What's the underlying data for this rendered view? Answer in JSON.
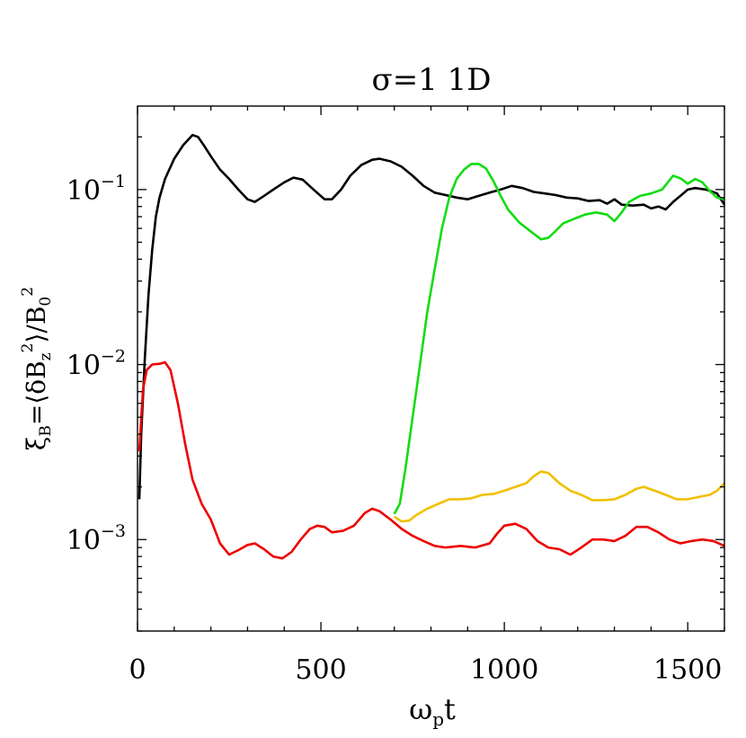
{
  "chart_data": {
    "type": "line",
    "title": "σ=1  1D",
    "xlabel": {
      "base": "ω",
      "sub": "p",
      "tail": "t"
    },
    "ylabel": "ξ_B=⟨δB_z^2⟩/B_0^2",
    "xlim": [
      0,
      1600
    ],
    "ylim": [
      0.0003,
      0.3
    ],
    "yscale": "log",
    "x_ticks": [
      {
        "value": 0,
        "label": "0"
      },
      {
        "value": 500,
        "label": "500"
      },
      {
        "value": 1000,
        "label": "1000"
      },
      {
        "value": 1500,
        "label": "1500"
      }
    ],
    "y_ticks": [
      {
        "value": 0.1,
        "base": "10",
        "exp": "−1"
      },
      {
        "value": 0.01,
        "base": "10",
        "exp": "−2"
      },
      {
        "value": 0.001,
        "base": "10",
        "exp": "−3"
      }
    ],
    "series": [
      {
        "color": "#000000",
        "points": [
          [
            5,
            0.0017
          ],
          [
            10,
            0.004
          ],
          [
            20,
            0.011
          ],
          [
            30,
            0.025
          ],
          [
            40,
            0.045
          ],
          [
            50,
            0.07
          ],
          [
            60,
            0.09
          ],
          [
            75,
            0.115
          ],
          [
            100,
            0.15
          ],
          [
            125,
            0.18
          ],
          [
            150,
            0.205
          ],
          [
            165,
            0.2
          ],
          [
            180,
            0.18
          ],
          [
            200,
            0.155
          ],
          [
            225,
            0.13
          ],
          [
            250,
            0.115
          ],
          [
            275,
            0.1
          ],
          [
            300,
            0.088
          ],
          [
            320,
            0.085
          ],
          [
            345,
            0.092
          ],
          [
            370,
            0.1
          ],
          [
            400,
            0.11
          ],
          [
            425,
            0.117
          ],
          [
            450,
            0.114
          ],
          [
            480,
            0.1
          ],
          [
            510,
            0.088
          ],
          [
            530,
            0.088
          ],
          [
            555,
            0.1
          ],
          [
            580,
            0.12
          ],
          [
            610,
            0.138
          ],
          [
            640,
            0.148
          ],
          [
            660,
            0.15
          ],
          [
            690,
            0.145
          ],
          [
            720,
            0.135
          ],
          [
            750,
            0.12
          ],
          [
            780,
            0.105
          ],
          [
            810,
            0.096
          ],
          [
            840,
            0.093
          ],
          [
            870,
            0.09
          ],
          [
            900,
            0.088
          ],
          [
            930,
            0.092
          ],
          [
            960,
            0.096
          ],
          [
            990,
            0.1
          ],
          [
            1020,
            0.105
          ],
          [
            1050,
            0.102
          ],
          [
            1080,
            0.097
          ],
          [
            1110,
            0.095
          ],
          [
            1140,
            0.093
          ],
          [
            1170,
            0.09
          ],
          [
            1200,
            0.089
          ],
          [
            1230,
            0.086
          ],
          [
            1260,
            0.087
          ],
          [
            1280,
            0.083
          ],
          [
            1300,
            0.088
          ],
          [
            1320,
            0.082
          ],
          [
            1350,
            0.081
          ],
          [
            1380,
            0.082
          ],
          [
            1400,
            0.078
          ],
          [
            1420,
            0.08
          ],
          [
            1440,
            0.077
          ],
          [
            1460,
            0.085
          ],
          [
            1480,
            0.092
          ],
          [
            1500,
            0.1
          ],
          [
            1520,
            0.102
          ],
          [
            1550,
            0.1
          ],
          [
            1580,
            0.095
          ],
          [
            1600,
            0.082
          ]
        ]
      },
      {
        "color": "#ee0000",
        "points": [
          [
            5,
            0.0032
          ],
          [
            15,
            0.0072
          ],
          [
            25,
            0.0093
          ],
          [
            40,
            0.01
          ],
          [
            60,
            0.0101
          ],
          [
            75,
            0.0103
          ],
          [
            90,
            0.0093
          ],
          [
            110,
            0.006
          ],
          [
            130,
            0.0035
          ],
          [
            150,
            0.0022
          ],
          [
            175,
            0.0016
          ],
          [
            200,
            0.0013
          ],
          [
            225,
            0.00095
          ],
          [
            250,
            0.00082
          ],
          [
            275,
            0.00087
          ],
          [
            300,
            0.00093
          ],
          [
            320,
            0.00095
          ],
          [
            345,
            0.00088
          ],
          [
            370,
            0.0008
          ],
          [
            395,
            0.00078
          ],
          [
            420,
            0.00085
          ],
          [
            445,
            0.001
          ],
          [
            470,
            0.00115
          ],
          [
            490,
            0.0012
          ],
          [
            510,
            0.00118
          ],
          [
            530,
            0.0011
          ],
          [
            560,
            0.00112
          ],
          [
            590,
            0.0012
          ],
          [
            620,
            0.00142
          ],
          [
            640,
            0.0015
          ],
          [
            660,
            0.00145
          ],
          [
            690,
            0.0013
          ],
          [
            720,
            0.00115
          ],
          [
            750,
            0.00105
          ],
          [
            780,
            0.00098
          ],
          [
            810,
            0.00092
          ],
          [
            840,
            0.0009
          ],
          [
            880,
            0.00092
          ],
          [
            920,
            0.0009
          ],
          [
            960,
            0.00095
          ],
          [
            980,
            0.00108
          ],
          [
            1000,
            0.0012
          ],
          [
            1030,
            0.00123
          ],
          [
            1060,
            0.00115
          ],
          [
            1090,
            0.00098
          ],
          [
            1120,
            0.0009
          ],
          [
            1150,
            0.00088
          ],
          [
            1180,
            0.00082
          ],
          [
            1210,
            0.0009
          ],
          [
            1240,
            0.001
          ],
          [
            1270,
            0.001
          ],
          [
            1300,
            0.00098
          ],
          [
            1330,
            0.00105
          ],
          [
            1360,
            0.00118
          ],
          [
            1390,
            0.00118
          ],
          [
            1420,
            0.0011
          ],
          [
            1450,
            0.001
          ],
          [
            1480,
            0.00095
          ],
          [
            1510,
            0.00098
          ],
          [
            1540,
            0.001
          ],
          [
            1570,
            0.00098
          ],
          [
            1600,
            0.00092
          ]
        ]
      },
      {
        "color": "#11dd11",
        "points": [
          [
            700,
            0.0014
          ],
          [
            715,
            0.0016
          ],
          [
            730,
            0.0025
          ],
          [
            750,
            0.005
          ],
          [
            770,
            0.01
          ],
          [
            790,
            0.02
          ],
          [
            810,
            0.035
          ],
          [
            830,
            0.06
          ],
          [
            850,
            0.09
          ],
          [
            870,
            0.115
          ],
          [
            890,
            0.13
          ],
          [
            910,
            0.14
          ],
          [
            930,
            0.14
          ],
          [
            950,
            0.132
          ],
          [
            970,
            0.112
          ],
          [
            990,
            0.092
          ],
          [
            1010,
            0.077
          ],
          [
            1040,
            0.065
          ],
          [
            1070,
            0.058
          ],
          [
            1100,
            0.052
          ],
          [
            1120,
            0.053
          ],
          [
            1140,
            0.058
          ],
          [
            1160,
            0.064
          ],
          [
            1190,
            0.068
          ],
          [
            1220,
            0.072
          ],
          [
            1250,
            0.074
          ],
          [
            1280,
            0.072
          ],
          [
            1300,
            0.066
          ],
          [
            1320,
            0.074
          ],
          [
            1340,
            0.085
          ],
          [
            1370,
            0.092
          ],
          [
            1400,
            0.095
          ],
          [
            1430,
            0.1
          ],
          [
            1460,
            0.12
          ],
          [
            1480,
            0.116
          ],
          [
            1500,
            0.108
          ],
          [
            1520,
            0.115
          ],
          [
            1540,
            0.11
          ],
          [
            1560,
            0.098
          ],
          [
            1580,
            0.09
          ],
          [
            1600,
            0.088
          ]
        ]
      },
      {
        "color": "#f0c000",
        "points": [
          [
            700,
            0.00135
          ],
          [
            720,
            0.00127
          ],
          [
            740,
            0.00128
          ],
          [
            760,
            0.00138
          ],
          [
            790,
            0.0015
          ],
          [
            820,
            0.0016
          ],
          [
            850,
            0.0017
          ],
          [
            880,
            0.0017
          ],
          [
            910,
            0.00172
          ],
          [
            940,
            0.0018
          ],
          [
            970,
            0.00182
          ],
          [
            1000,
            0.0019
          ],
          [
            1030,
            0.002
          ],
          [
            1060,
            0.0021
          ],
          [
            1080,
            0.0023
          ],
          [
            1100,
            0.00245
          ],
          [
            1120,
            0.0024
          ],
          [
            1150,
            0.0021
          ],
          [
            1180,
            0.0019
          ],
          [
            1210,
            0.0018
          ],
          [
            1240,
            0.00168
          ],
          [
            1270,
            0.00168
          ],
          [
            1300,
            0.0017
          ],
          [
            1330,
            0.0018
          ],
          [
            1360,
            0.00195
          ],
          [
            1380,
            0.002
          ],
          [
            1410,
            0.0019
          ],
          [
            1440,
            0.0018
          ],
          [
            1470,
            0.0017
          ],
          [
            1500,
            0.0017
          ],
          [
            1530,
            0.00175
          ],
          [
            1560,
            0.0018
          ],
          [
            1580,
            0.0019
          ],
          [
            1600,
            0.0021
          ]
        ]
      }
    ]
  }
}
